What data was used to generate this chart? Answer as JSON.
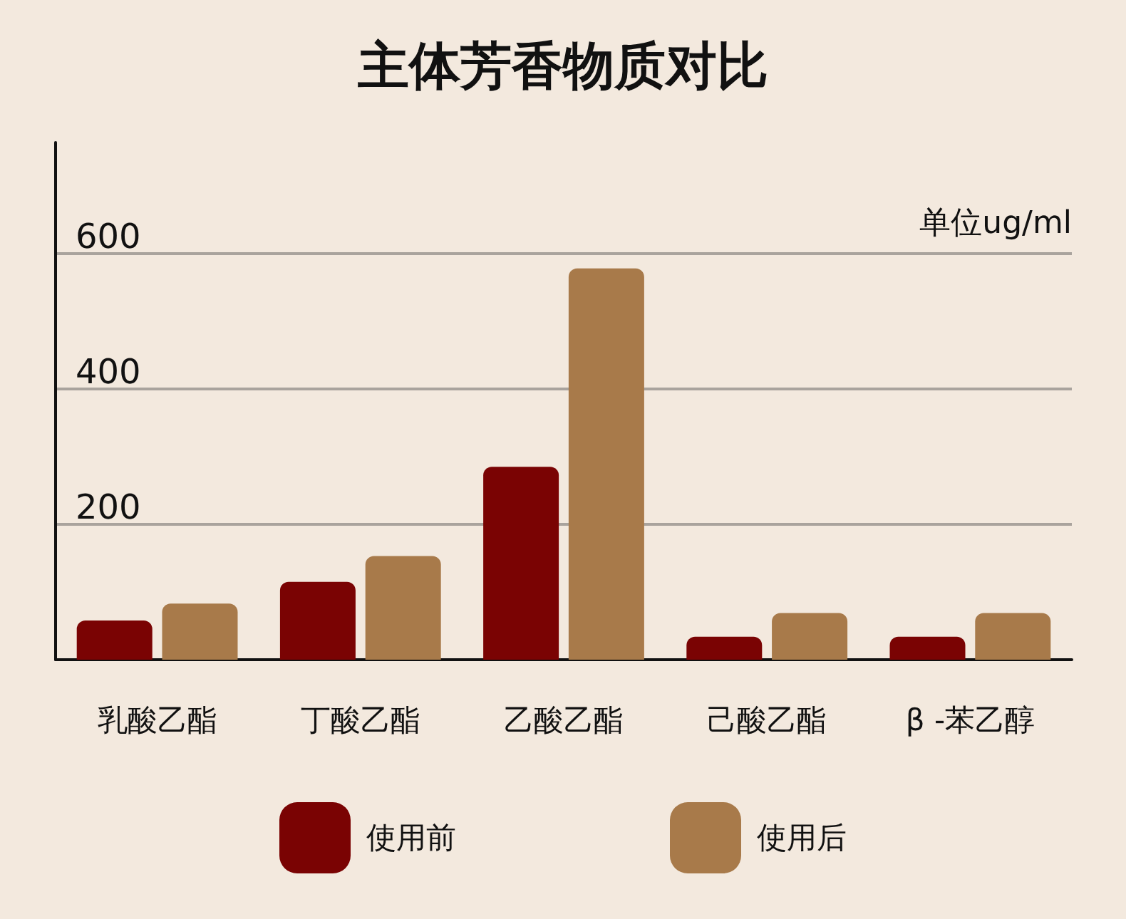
{
  "chart_data": {
    "type": "bar",
    "title": "主体芳香物质对比",
    "ylabel": "单位ug/ml",
    "categories": [
      "乳酸乙酯",
      "丁酸乙酯",
      "乙酸乙酯",
      "己酸乙酯",
      "β -苯乙醇"
    ],
    "series": [
      {
        "name": "使用前",
        "color": "#7a0303",
        "values": [
          58,
          115,
          285,
          34,
          34
        ]
      },
      {
        "name": "使用后",
        "color": "#a87a4a",
        "values": [
          83,
          153,
          578,
          69,
          69
        ]
      }
    ],
    "ylim": [
      0,
      764
    ],
    "yticks": [
      {
        "value": 0,
        "label": null
      },
      200,
      400,
      600
    ],
    "grid": "y",
    "legend": "bottom"
  }
}
